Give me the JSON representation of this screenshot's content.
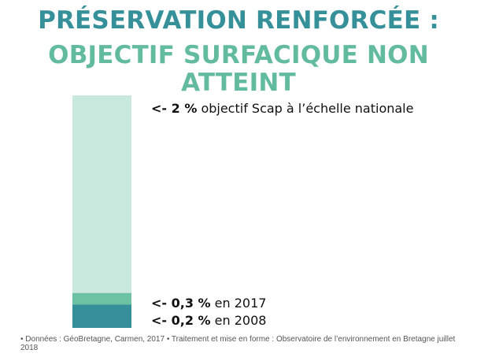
{
  "title": {
    "line1": "PRÉSERVATION RENFORCÉE :",
    "line2": "OBJECTIF SURFACIQUE NON",
    "line3": "ATTEINT"
  },
  "colors": {
    "title_primary": "#35909a",
    "title_secondary": "#62bb9f",
    "objective": "#c9e8de",
    "y2017": "#6dc2a3",
    "y2008": "#35909a"
  },
  "chart_data": {
    "type": "bar",
    "orientation": "vertical-stacked-single",
    "unit": "%",
    "ylim": [
      0,
      2
    ],
    "grid": false,
    "segments": [
      {
        "key": "y2008",
        "value": 0.2,
        "arrow": "<- ",
        "value_label": "0,2 %",
        "text": " en 2008",
        "color": "#35909a"
      },
      {
        "key": "y2017",
        "value": 0.3,
        "arrow": "<- ",
        "value_label": "0,3 %",
        "text": " en 2017",
        "color": "#6dc2a3"
      },
      {
        "key": "objective",
        "value": 2,
        "arrow": "<- ",
        "value_label": "2 %",
        "text": " objectif Scap à l’échelle nationale",
        "color": "#c9e8de"
      }
    ]
  },
  "footer": {
    "text": "• Données : GéoBretagne, Carmen, 2017 • Traitement et mise en forme : Observatoire de l’environnement en Bretagne juillet 2018"
  }
}
